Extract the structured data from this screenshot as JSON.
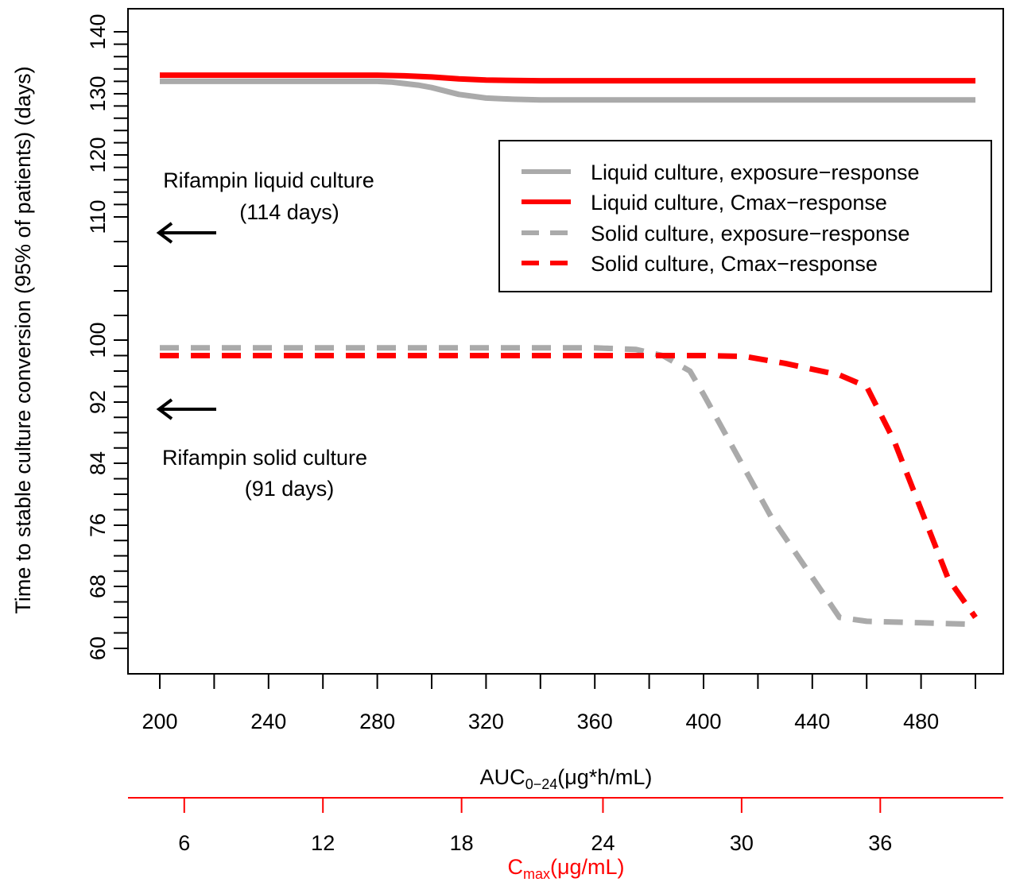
{
  "chart_data": {
    "type": "line",
    "title": "",
    "ylabel": "Time to stable culture conversion (95% of patients) (days)",
    "xlabel": {
      "main": "AUC",
      "sub": "0−24",
      "rest": "(μg*h/mL)"
    },
    "x2label": {
      "main": "C",
      "sub": "max",
      "rest": "(μg/mL)"
    },
    "xlim": [
      200,
      500
    ],
    "ylim": [
      60,
      140
    ],
    "x_ticks_major": [
      200,
      240,
      280,
      320,
      360,
      400,
      440,
      480
    ],
    "x_ticks_minor": [
      220,
      260,
      300,
      340,
      380,
      420,
      460,
      500
    ],
    "x2_ticks": [
      6,
      12,
      18,
      24,
      30,
      36
    ],
    "x2_ticks_x": [
      209,
      260,
      311,
      363,
      414,
      465
    ],
    "y_ticks_labeled": [
      60,
      68,
      76,
      84,
      92,
      100,
      110,
      120,
      130,
      140
    ],
    "y_ticks_minor": [
      62,
      64,
      66,
      70,
      72,
      74,
      78,
      80,
      82,
      86,
      88,
      90,
      94,
      96,
      98,
      102,
      104,
      106,
      108,
      112,
      114,
      116,
      118,
      122,
      124,
      126,
      128,
      132,
      134,
      136,
      138
    ],
    "y_axis_note": "tick labels are printed by the chart; spacing is nonuniform, so values are mapped piecewise-linearly between labeled ticks",
    "grid": false,
    "legend_position": "top-right",
    "colors": {
      "gray": "#aaaaaa",
      "red": "#ff0000",
      "axis": "#000000",
      "secondary_axis": "#ff0000"
    },
    "series": [
      {
        "name": "Liquid culture, exposure−response",
        "color": "#aaaaaa",
        "dash": "solid",
        "x": [
          200,
          220,
          240,
          260,
          280,
          285,
          295,
          300,
          310,
          320,
          330,
          340,
          360,
          380,
          400,
          440,
          480,
          500
        ],
        "y": [
          132,
          132,
          132,
          132,
          132,
          131.9,
          131.4,
          131,
          129.9,
          129.3,
          129.1,
          129,
          129,
          129,
          129,
          129,
          129,
          129
        ]
      },
      {
        "name": "Liquid culture, Cmax−response",
        "color": "#ff0000",
        "dash": "solid",
        "x": [
          200,
          240,
          280,
          290,
          300,
          310,
          320,
          330,
          340,
          360,
          400,
          440,
          480,
          500
        ],
        "y": [
          133,
          133,
          133,
          132.9,
          132.7,
          132.4,
          132.2,
          132.15,
          132.1,
          132.1,
          132.1,
          132.1,
          132.1,
          132.1
        ]
      },
      {
        "name": "Solid culture, exposure−response",
        "color": "#aaaaaa",
        "dash": "dashed",
        "x": [
          200,
          240,
          280,
          320,
          360,
          375,
          385,
          395,
          400,
          425,
          450,
          460,
          480,
          500
        ],
        "y": [
          99,
          99,
          99,
          99,
          99,
          98.8,
          98,
          96,
          93,
          77,
          64,
          63.5,
          63.3,
          63.1
        ]
      },
      {
        "name": "Solid culture, Cmax−response",
        "color": "#ff0000",
        "dash": "dashed",
        "x": [
          200,
          240,
          280,
          320,
          360,
          400,
          415,
          430,
          450,
          460,
          470,
          490,
          500
        ],
        "y": [
          98,
          98,
          98,
          98,
          98,
          98,
          97.9,
          97,
          95.5,
          94,
          87,
          69,
          64
        ]
      }
    ],
    "annotations": [
      {
        "lines": [
          "Rifampin liquid culture",
          "(114 days)"
        ],
        "arrow_at_y": 114
      },
      {
        "lines": [
          "Rifampin solid culture",
          "(91 days)"
        ],
        "arrow_at_y": 91
      }
    ]
  }
}
